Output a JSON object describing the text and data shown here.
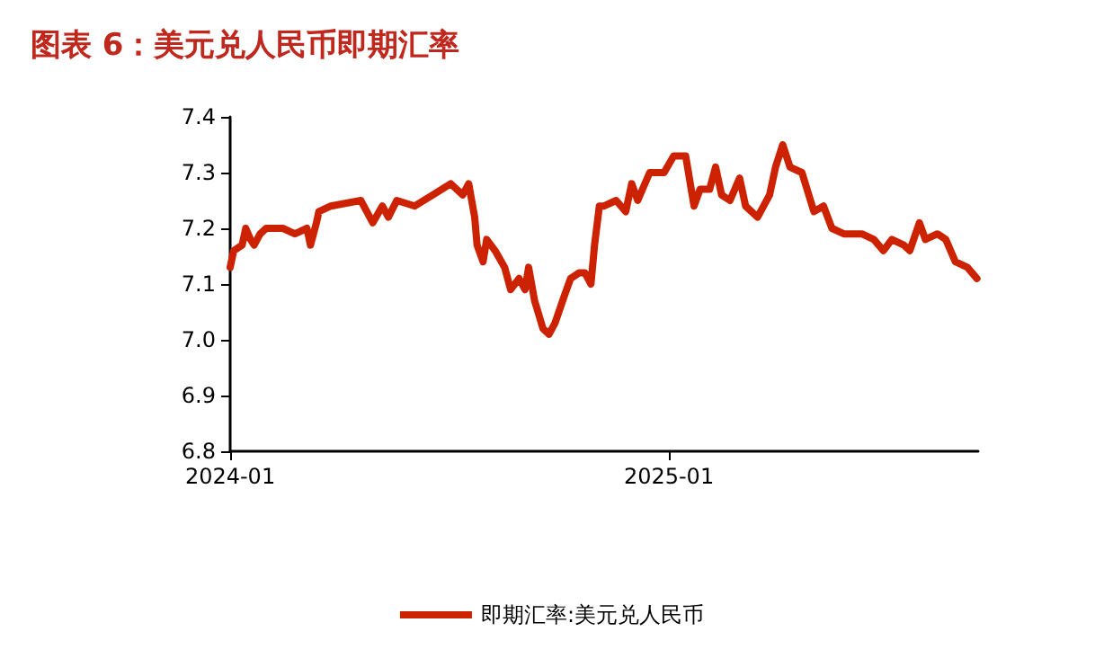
{
  "chart_data": {
    "type": "line",
    "title": "图表 6：美元兑人民币即期汇率",
    "x": [
      "2024-01-01",
      "2024-01-04",
      "2024-01-11",
      "2024-01-14",
      "2024-01-18",
      "2024-01-21",
      "2024-01-26",
      "2024-01-31",
      "2024-02-14",
      "2024-02-24",
      "2024-03-05",
      "2024-03-08",
      "2024-03-13",
      "2024-03-15",
      "2024-03-25",
      "2024-04-19",
      "2024-04-24",
      "2024-04-29",
      "2024-05-07",
      "2024-05-12",
      "2024-05-19",
      "2024-06-03",
      "2024-06-18",
      "2024-07-03",
      "2024-07-08",
      "2024-07-13",
      "2024-07-18",
      "2024-07-23",
      "2024-07-25",
      "2024-07-30",
      "2024-08-02",
      "2024-08-09",
      "2024-08-17",
      "2024-08-22",
      "2024-08-29",
      "2024-09-03",
      "2024-09-06",
      "2024-09-11",
      "2024-09-18",
      "2024-09-23",
      "2024-09-28",
      "2024-10-06",
      "2024-10-11",
      "2024-10-18",
      "2024-10-23",
      "2024-10-28",
      "2024-10-31",
      "2024-11-04",
      "2024-11-08",
      "2024-11-18",
      "2024-11-26",
      "2024-12-01",
      "2024-12-06",
      "2024-12-16",
      "2024-12-28",
      "2025-01-05",
      "2025-01-15",
      "2025-01-22",
      "2025-01-27",
      "2025-02-04",
      "2025-02-09",
      "2025-02-14",
      "2025-02-21",
      "2025-03-01",
      "2025-03-06",
      "2025-03-16",
      "2025-03-26",
      "2025-03-31",
      "2025-04-06",
      "2025-04-12",
      "2025-04-22",
      "2025-05-02",
      "2025-05-10",
      "2025-05-17",
      "2025-05-27",
      "2025-06-11",
      "2025-06-21",
      "2025-06-29",
      "2025-07-06",
      "2025-07-16",
      "2025-07-21",
      "2025-07-29",
      "2025-08-03",
      "2025-08-13",
      "2025-08-20",
      "2025-08-28",
      "2025-09-07",
      "2025-09-15"
    ],
    "series": [
      {
        "name": "即期汇率:美元兑人民币",
        "color": "#cc2200",
        "values": [
          7.13,
          7.16,
          7.17,
          7.2,
          7.18,
          7.17,
          7.19,
          7.2,
          7.2,
          7.19,
          7.2,
          7.17,
          7.21,
          7.23,
          7.24,
          7.25,
          7.23,
          7.21,
          7.24,
          7.22,
          7.25,
          7.24,
          7.26,
          7.28,
          7.27,
          7.26,
          7.28,
          7.22,
          7.17,
          7.14,
          7.18,
          7.16,
          7.13,
          7.09,
          7.11,
          7.09,
          7.13,
          7.07,
          7.02,
          7.01,
          7.03,
          7.08,
          7.11,
          7.12,
          7.12,
          7.1,
          7.17,
          7.24,
          7.24,
          7.25,
          7.23,
          7.28,
          7.25,
          7.3,
          7.3,
          7.33,
          7.33,
          7.24,
          7.27,
          7.27,
          7.31,
          7.26,
          7.25,
          7.29,
          7.24,
          7.22,
          7.26,
          7.31,
          7.35,
          7.31,
          7.3,
          7.23,
          7.24,
          7.2,
          7.19,
          7.19,
          7.18,
          7.16,
          7.18,
          7.17,
          7.16,
          7.21,
          7.18,
          7.19,
          7.18,
          7.14,
          7.13,
          7.11
        ]
      }
    ],
    "xlim": [
      "2024-01-01",
      "2025-09-16"
    ],
    "xticks": [
      "2024-01",
      "2025-01"
    ],
    "ylim": [
      6.8,
      7.4
    ],
    "yticks": [
      {
        "value": 6.8,
        "label": "6.8"
      },
      {
        "value": 6.9,
        "label": "6.9"
      },
      {
        "value": 7,
        "label": "7.0"
      },
      {
        "value": 7.1,
        "label": "7.1"
      },
      {
        "value": 7.2,
        "label": "7.2"
      },
      {
        "value": 7.3,
        "label": "7.3"
      },
      {
        "value": 7.4,
        "label": "7.4"
      }
    ],
    "grid": false,
    "legend": "bottom",
    "marker": "none",
    "line_style": "solid"
  }
}
